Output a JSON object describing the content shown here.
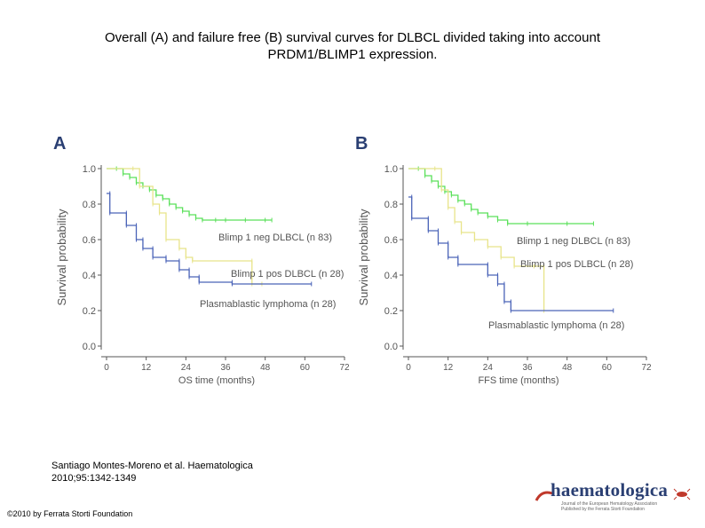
{
  "title": {
    "line1": "Overall (A) and failure free (B) survival curves for DLBCL divided taking into account",
    "line2": "PRDM1/BLIMP1 expression."
  },
  "citation": {
    "line1": "Santiago Montes-Moreno et al. Haematologica",
    "line2": "2010;95:1342-1349"
  },
  "copyright": "©2010 by Ferrata Storti Foundation",
  "logo": {
    "text": "haematologica",
    "tagline1": "Journal of the European Hematology Association",
    "tagline2": "Published by the Ferrata Storti Foundation"
  },
  "colors": {
    "blimp_neg": "#5ae05a",
    "blimp_pos": "#e8e48a",
    "plasmablastic": "#4a63b8",
    "axis": "#555555"
  },
  "chart_data": [
    {
      "type": "line",
      "panel_label": "A",
      "xlabel": "OS time (months)",
      "ylabel": "Survival probability",
      "xticks": [
        0,
        12,
        24,
        36,
        48,
        60,
        72
      ],
      "yticks": [
        "0.0",
        "0.2",
        "0.4",
        "0.6",
        "0.8",
        "1.0"
      ],
      "xlim": [
        0,
        72
      ],
      "ylim": [
        0,
        1
      ],
      "series": [
        {
          "name": "Blimp 1 neg DLBCL (n 83)",
          "color": "#5ae05a",
          "points": [
            [
              0,
              1.0
            ],
            [
              3,
              1.0
            ],
            [
              5,
              0.97
            ],
            [
              7,
              0.95
            ],
            [
              9,
              0.92
            ],
            [
              11,
              0.9
            ],
            [
              13,
              0.88
            ],
            [
              15,
              0.85
            ],
            [
              17,
              0.83
            ],
            [
              19,
              0.8
            ],
            [
              21,
              0.78
            ],
            [
              23,
              0.76
            ],
            [
              25,
              0.74
            ],
            [
              27,
              0.72
            ],
            [
              29,
              0.71
            ],
            [
              33,
              0.71
            ],
            [
              36,
              0.71
            ],
            [
              42,
              0.71
            ],
            [
              48,
              0.71
            ],
            [
              50,
              0.71
            ]
          ]
        },
        {
          "name": "Blimp 1 pos DLBCL (n 28)",
          "color": "#e8e48a",
          "points": [
            [
              0,
              1.0
            ],
            [
              8,
              1.0
            ],
            [
              10,
              0.9
            ],
            [
              14,
              0.8
            ],
            [
              16,
              0.75
            ],
            [
              18,
              0.6
            ],
            [
              22,
              0.55
            ],
            [
              24,
              0.5
            ],
            [
              26,
              0.48
            ],
            [
              44,
              0.48
            ],
            [
              44,
              0.35
            ],
            [
              47,
              0.35
            ]
          ]
        },
        {
          "name": "Plasmablastic lymphoma (n 28)",
          "color": "#4a63b8",
          "points": [
            [
              0,
              0.86
            ],
            [
              1,
              0.86
            ],
            [
              1,
              0.75
            ],
            [
              6,
              0.75
            ],
            [
              6,
              0.68
            ],
            [
              9,
              0.68
            ],
            [
              9,
              0.6
            ],
            [
              11,
              0.6
            ],
            [
              11,
              0.55
            ],
            [
              14,
              0.55
            ],
            [
              14,
              0.5
            ],
            [
              18,
              0.5
            ],
            [
              18,
              0.48
            ],
            [
              22,
              0.48
            ],
            [
              22,
              0.43
            ],
            [
              25,
              0.43
            ],
            [
              25,
              0.39
            ],
            [
              28,
              0.39
            ],
            [
              28,
              0.36
            ],
            [
              38,
              0.36
            ],
            [
              38,
              0.35
            ],
            [
              62,
              0.35
            ]
          ]
        }
      ],
      "annotations": [
        "Blimp 1 neg DLBCL (n 83)",
        "Blimp 1 pos DLBCL (n 28)",
        "Plasmablastic lymphoma (n 28)"
      ]
    },
    {
      "type": "line",
      "panel_label": "B",
      "xlabel": "FFS time (months)",
      "ylabel": "Survival probability",
      "xticks": [
        0,
        12,
        24,
        36,
        48,
        60,
        72
      ],
      "yticks": [
        "0.0",
        "0.2",
        "0.4",
        "0.6",
        "0.8",
        "1.0"
      ],
      "xlim": [
        0,
        72
      ],
      "ylim": [
        0,
        1
      ],
      "series": [
        {
          "name": "Blimp 1 neg DLBCL (n 83)",
          "color": "#5ae05a",
          "points": [
            [
              0,
              1.0
            ],
            [
              3,
              1.0
            ],
            [
              5,
              0.96
            ],
            [
              7,
              0.93
            ],
            [
              9,
              0.9
            ],
            [
              11,
              0.87
            ],
            [
              13,
              0.85
            ],
            [
              15,
              0.82
            ],
            [
              17,
              0.8
            ],
            [
              19,
              0.77
            ],
            [
              21,
              0.75
            ],
            [
              24,
              0.73
            ],
            [
              27,
              0.71
            ],
            [
              30,
              0.69
            ],
            [
              36,
              0.69
            ],
            [
              48,
              0.69
            ],
            [
              56,
              0.69
            ]
          ]
        },
        {
          "name": "Blimp 1 pos DLBCL (n 28)",
          "color": "#e8e48a",
          "points": [
            [
              0,
              1.0
            ],
            [
              8,
              1.0
            ],
            [
              10,
              0.88
            ],
            [
              12,
              0.78
            ],
            [
              14,
              0.7
            ],
            [
              16,
              0.64
            ],
            [
              20,
              0.6
            ],
            [
              24,
              0.56
            ],
            [
              28,
              0.5
            ],
            [
              32,
              0.45
            ],
            [
              38,
              0.45
            ],
            [
              41,
              0.45
            ],
            [
              41,
              0.2
            ]
          ]
        },
        {
          "name": "Plasmablastic lymphoma (n 28)",
          "color": "#4a63b8",
          "points": [
            [
              0,
              0.84
            ],
            [
              1,
              0.84
            ],
            [
              1,
              0.72
            ],
            [
              6,
              0.72
            ],
            [
              6,
              0.65
            ],
            [
              9,
              0.65
            ],
            [
              9,
              0.58
            ],
            [
              12,
              0.58
            ],
            [
              12,
              0.5
            ],
            [
              15,
              0.5
            ],
            [
              15,
              0.46
            ],
            [
              24,
              0.46
            ],
            [
              24,
              0.4
            ],
            [
              27,
              0.4
            ],
            [
              27,
              0.35
            ],
            [
              29,
              0.35
            ],
            [
              29,
              0.25
            ],
            [
              31,
              0.25
            ],
            [
              31,
              0.2
            ],
            [
              62,
              0.2
            ]
          ]
        }
      ],
      "annotations": [
        "Blimp 1 neg DLBCL (n 83)",
        "Blimp 1 pos DLBCL (n 28)",
        "Plasmablastic lymphoma (n 28)"
      ]
    }
  ]
}
